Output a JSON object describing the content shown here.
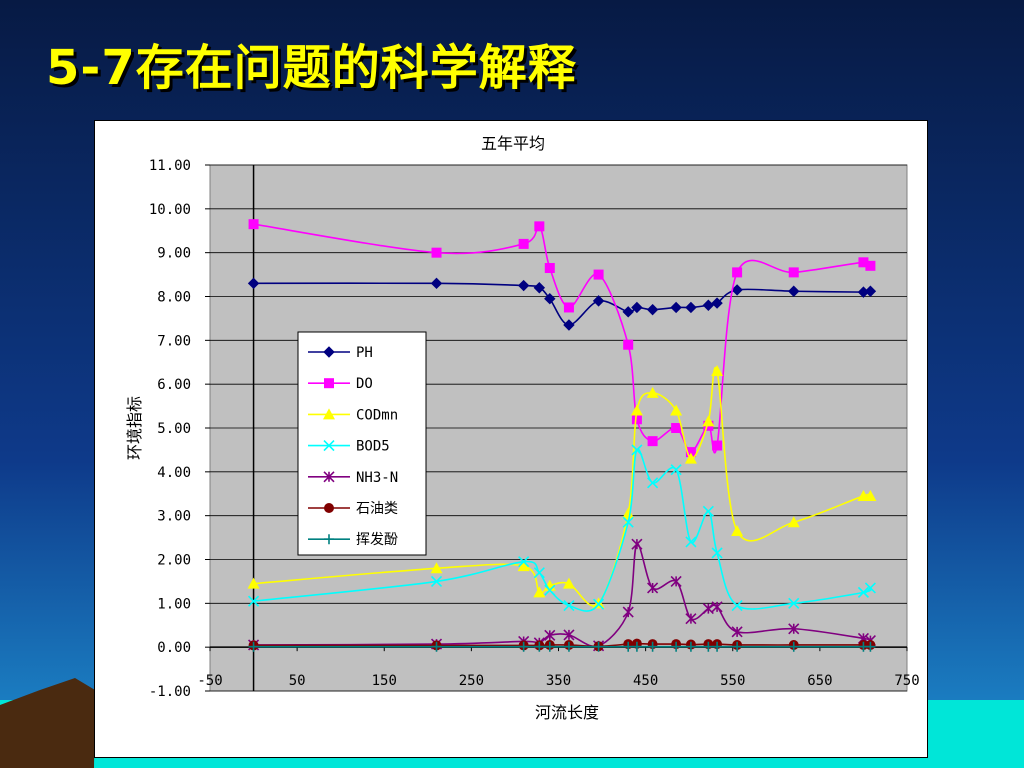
{
  "slide": {
    "title": "5-7存在问题的科学解释",
    "colors": {
      "title": "#FFFF00",
      "bg_top": "#071A44",
      "bg_mid": "#0E3A8A",
      "bg_bottom": "#1E8FD0",
      "sea": "#00E6D8",
      "mountain": "#4A2A10"
    }
  },
  "chart_data": {
    "type": "line",
    "title": "五年平均",
    "xlabel": "河流长度",
    "ylabel": "环境指标",
    "xlim": [
      -50,
      750
    ],
    "ylim": [
      -1,
      11
    ],
    "x_ticks": [
      "-50",
      "50",
      "150",
      "250",
      "350",
      "450",
      "550",
      "650",
      "750"
    ],
    "y_ticks": [
      "11.00",
      "10.00",
      "9.00",
      "8.00",
      "7.00",
      "6.00",
      "5.00",
      "4.00",
      "3.00",
      "2.00",
      "1.00",
      "0.00",
      "-1.00"
    ],
    "plot_bg": "#C0C0C0",
    "legend_position": "center-left",
    "x": [
      0,
      210,
      310,
      328,
      340,
      362,
      396,
      430,
      440,
      458,
      485,
      502,
      522,
      532,
      555,
      620,
      700,
      708
    ],
    "series": [
      {
        "name": "PH",
        "color": "#000080",
        "marker": "diamond",
        "values": [
          8.3,
          8.3,
          8.25,
          8.2,
          7.95,
          7.35,
          7.9,
          7.65,
          7.75,
          7.7,
          7.75,
          7.75,
          7.8,
          7.85,
          8.15,
          8.12,
          8.1,
          8.12
        ]
      },
      {
        "name": "DO",
        "color": "#FF00FF",
        "marker": "square",
        "values": [
          9.65,
          9.0,
          9.2,
          9.6,
          8.65,
          7.75,
          8.5,
          6.9,
          5.2,
          4.7,
          5.0,
          4.45,
          5.05,
          4.6,
          8.55,
          8.55,
          8.78,
          8.7
        ]
      },
      {
        "name": "CODmn",
        "color": "#FFFF00",
        "marker": "triangle",
        "values": [
          1.45,
          1.8,
          1.85,
          1.25,
          1.4,
          1.45,
          1.0,
          3.05,
          5.4,
          5.8,
          5.4,
          4.3,
          5.15,
          6.3,
          2.65,
          2.85,
          3.45,
          3.45
        ]
      },
      {
        "name": "BOD5",
        "color": "#00FFFF",
        "marker": "x",
        "values": [
          1.05,
          1.5,
          1.95,
          1.7,
          1.3,
          0.95,
          0.98,
          2.85,
          4.5,
          3.75,
          4.05,
          2.4,
          3.1,
          2.15,
          0.95,
          1.0,
          1.25,
          1.35
        ]
      },
      {
        "name": "NH3-N",
        "color": "#800080",
        "marker": "star",
        "values": [
          0.05,
          0.07,
          0.13,
          0.1,
          0.27,
          0.28,
          0.03,
          0.8,
          2.35,
          1.35,
          1.5,
          0.65,
          0.88,
          0.92,
          0.35,
          0.42,
          0.2,
          0.15
        ]
      },
      {
        "name": "石油类",
        "color": "#800000",
        "marker": "circle",
        "values": [
          0.04,
          0.04,
          0.04,
          0.04,
          0.05,
          0.05,
          0.02,
          0.07,
          0.08,
          0.07,
          0.07,
          0.06,
          0.07,
          0.07,
          0.05,
          0.05,
          0.05,
          0.05
        ]
      },
      {
        "name": "挥发酚",
        "color": "#008080",
        "marker": "plus",
        "values": [
          0.01,
          0.01,
          0.01,
          0.01,
          0.01,
          0.01,
          0.01,
          0.01,
          0.01,
          0.01,
          0.01,
          0.01,
          0.01,
          0.01,
          0.01,
          0.01,
          0.01,
          0.01
        ]
      }
    ]
  }
}
